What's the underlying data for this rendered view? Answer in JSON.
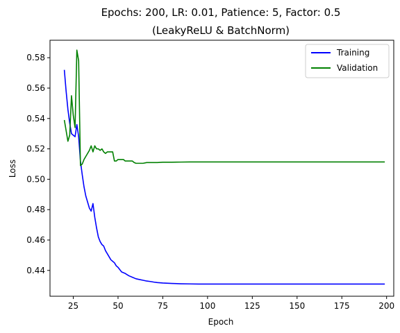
{
  "chart_data": {
    "type": "line",
    "title_line1": "Epochs: 200, LR: 0.01, Patience: 5, Factor: 0.5",
    "title_line2": "(LeakyReLU & BatchNorm)",
    "xlabel": "Epoch",
    "ylabel": "Loss",
    "xlim": [
      12,
      204
    ],
    "ylim": [
      0.423,
      0.5915
    ],
    "xticks": [
      25,
      50,
      75,
      100,
      125,
      150,
      175,
      200
    ],
    "yticks": [
      0.44,
      0.46,
      0.48,
      0.5,
      0.52,
      0.54,
      0.56,
      0.58
    ],
    "ytick_labels": [
      "0.44",
      "0.46",
      "0.48",
      "0.50",
      "0.52",
      "0.54",
      "0.56",
      "0.58"
    ],
    "legend_position": "top-right",
    "grid": false,
    "series": [
      {
        "name": "Training",
        "color": "#0000ff",
        "x": [
          20,
          21,
          22,
          23,
          24,
          25,
          26,
          27,
          28,
          29,
          30,
          31,
          32,
          33,
          34,
          35,
          36,
          37,
          38,
          39,
          40,
          41,
          42,
          43,
          44,
          45,
          46,
          47,
          48,
          49,
          50,
          52,
          54,
          56,
          58,
          60,
          62,
          64,
          66,
          68,
          70,
          72,
          75,
          80,
          85,
          90,
          95,
          100,
          110,
          125,
          150,
          175,
          199
        ],
        "y": [
          0.572,
          0.558,
          0.546,
          0.537,
          0.53,
          0.529,
          0.528,
          0.536,
          0.528,
          0.512,
          0.503,
          0.495,
          0.489,
          0.485,
          0.481,
          0.479,
          0.484,
          0.475,
          0.468,
          0.462,
          0.459,
          0.457,
          0.456,
          0.453,
          0.451,
          0.449,
          0.447,
          0.446,
          0.445,
          0.443,
          0.442,
          0.439,
          0.438,
          0.4365,
          0.4355,
          0.4345,
          0.434,
          0.4335,
          0.433,
          0.4327,
          0.4323,
          0.432,
          0.4317,
          0.4314,
          0.4312,
          0.4311,
          0.431,
          0.431,
          0.431,
          0.431,
          0.431,
          0.431,
          0.431
        ]
      },
      {
        "name": "Validation",
        "color": "#008000",
        "x": [
          20,
          21,
          22,
          23,
          24,
          25,
          26,
          27,
          28,
          29,
          30,
          31,
          32,
          33,
          34,
          35,
          36,
          37,
          38,
          39,
          40,
          41,
          42,
          43,
          44,
          45,
          46,
          47,
          48,
          49,
          50,
          52,
          53,
          54,
          56,
          58,
          59,
          60,
          62,
          64,
          66,
          68,
          70,
          72,
          75,
          80,
          85,
          90,
          100,
          125,
          150,
          175,
          199
        ],
        "y": [
          0.539,
          0.532,
          0.525,
          0.529,
          0.555,
          0.542,
          0.534,
          0.585,
          0.578,
          0.509,
          0.51,
          0.513,
          0.515,
          0.517,
          0.519,
          0.522,
          0.518,
          0.522,
          0.52,
          0.52,
          0.519,
          0.52,
          0.518,
          0.517,
          0.518,
          0.518,
          0.518,
          0.518,
          0.512,
          0.512,
          0.513,
          0.513,
          0.513,
          0.512,
          0.512,
          0.512,
          0.511,
          0.5105,
          0.5105,
          0.5105,
          0.511,
          0.511,
          0.511,
          0.511,
          0.5112,
          0.5112,
          0.5113,
          0.5114,
          0.5114,
          0.5114,
          0.5114,
          0.5114,
          0.5114
        ]
      }
    ]
  }
}
